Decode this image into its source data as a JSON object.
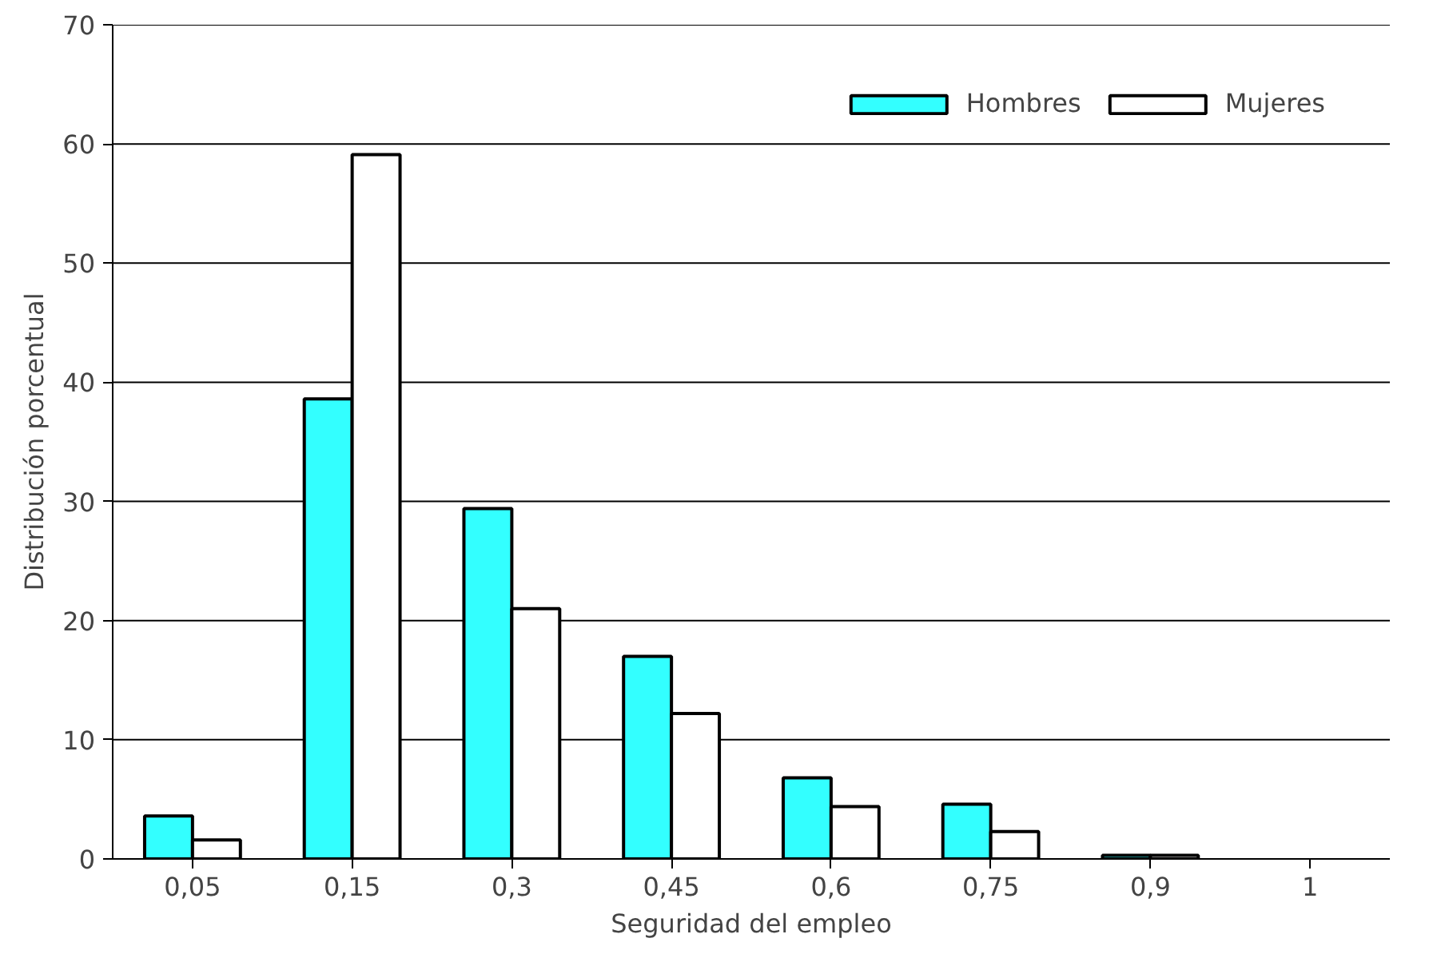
{
  "chart_data": {
    "type": "bar",
    "xlabel": "Seguridad del empleo",
    "ylabel": "Distribución porcentual",
    "categories": [
      "0,05",
      "0,15",
      "0,3",
      "0,45",
      "0,6",
      "0,75",
      "0,9",
      "1"
    ],
    "series": [
      {
        "name": "Hombres",
        "color": "#33ffff",
        "values": [
          3.6,
          38.6,
          29.4,
          17.0,
          6.8,
          4.6,
          0.3,
          null
        ]
      },
      {
        "name": "Mujeres",
        "color": "#ffffff",
        "values": [
          1.6,
          59.1,
          21.0,
          12.2,
          4.4,
          2.3,
          0.3,
          null
        ]
      }
    ],
    "ylim": [
      0,
      70
    ],
    "yticks": [
      0,
      10,
      20,
      30,
      40,
      50,
      60,
      70
    ],
    "grid": "y",
    "legend": "top right"
  }
}
